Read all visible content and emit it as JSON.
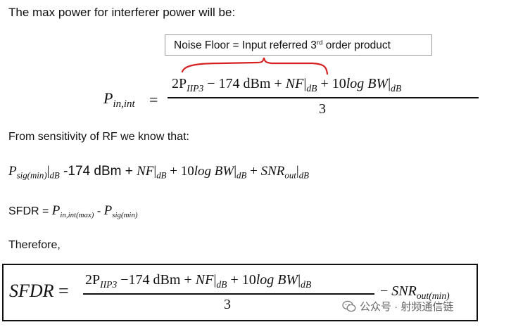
{
  "heading": "The max power for interferer power will be:",
  "note": {
    "text_before": "Noise Floor = Input referred 3",
    "superscript": "rd",
    "text_after": " order product"
  },
  "equation_1": {
    "lhs_base": "P",
    "lhs_sub": "in,int",
    "equals": "=",
    "numerator": {
      "coef": "2P",
      "iip3_sub": "IIP3",
      "minus_const": " − 174 dBm + ",
      "nf": "NF",
      "nf_sub": "dB",
      "plus": " + 10",
      "log_bw": "log BW",
      "bw_sub": "dB"
    },
    "denominator": "3"
  },
  "sensitivity_text": "From sensitivity of RF we know that:",
  "equation_2": {
    "p": "P",
    "p_sub": "sig(min)",
    "p_unit_sub": "dB",
    "mid": " -174 dBm + ",
    "nf": "NF",
    "nf_sub": "dB",
    "plus_log": " + 10",
    "log_bw": "log BW",
    "bw_sub": "dB",
    "plus_snr": " + ",
    "snr": "SNR",
    "snr_sub": "out",
    "snr_unit_sub": "dB"
  },
  "equation_3": {
    "label": "SFDR = ",
    "p1": "P",
    "p1_sub": "in,int(max)",
    "minus": " - ",
    "p2": "P",
    "p2_sub": "sig(min)"
  },
  "therefore_text": "Therefore,",
  "final_equation": {
    "lhs": "SFDR",
    "equals": " =",
    "numerator": {
      "coef": "2P",
      "iip3_sub": "IIP3",
      "minus_const": " −174 dBm + ",
      "nf": "NF",
      "nf_sub": "dB",
      "plus": " + 10",
      "log_bw": "log BW",
      "bw_sub": "dB"
    },
    "denominator": "3",
    "minus": "− ",
    "snr": "SNR",
    "snr_sub": "out(min)"
  },
  "watermark": {
    "icon": "wechat-icon",
    "text": "公众号 · 射频通信链"
  },
  "colors": {
    "brace": "#d62020",
    "text": "#111111",
    "watermark": "#666666"
  }
}
